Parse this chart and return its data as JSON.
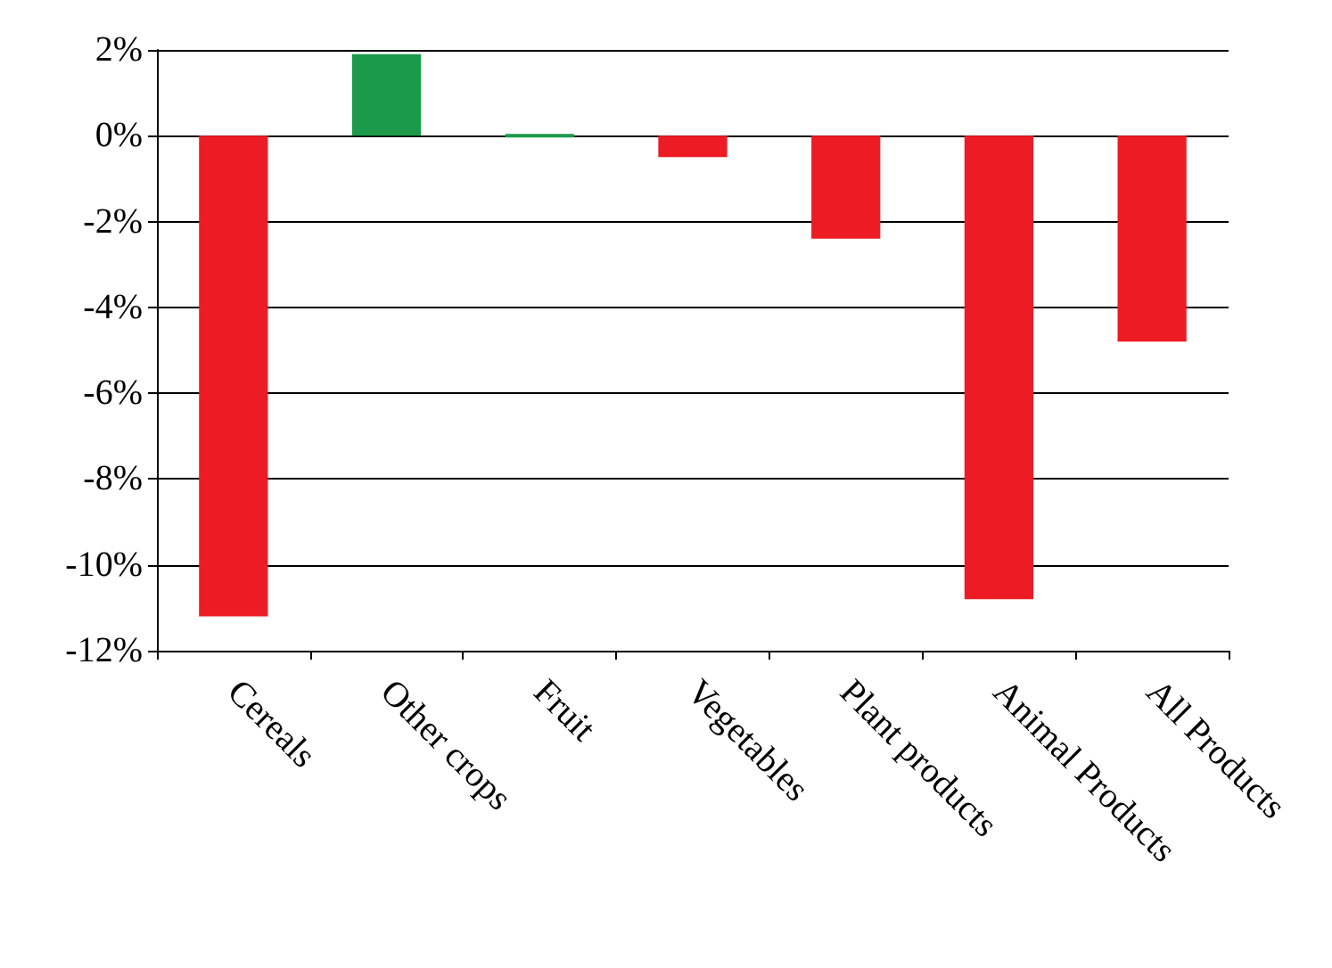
{
  "chart_data": {
    "type": "bar",
    "categories": [
      "Cereals",
      "Other crops",
      "Fruit",
      "Vegetables",
      "Plant products",
      "Animal Products",
      "All Products"
    ],
    "values": [
      -11.2,
      1.9,
      0,
      -0.5,
      -2.4,
      -10.8,
      -4.8
    ],
    "colors": [
      "#ed1c24",
      "#1a9a4a",
      "#1a9a4a",
      "#ed1c24",
      "#ed1c24",
      "#ed1c24",
      "#ed1c24"
    ],
    "ylim": [
      -12,
      2
    ],
    "yticks": [
      {
        "value": -12,
        "label": "-12%"
      },
      {
        "value": -10,
        "label": "-10%"
      },
      {
        "value": -8,
        "label": "-8%"
      },
      {
        "value": -6,
        "label": "-6%"
      },
      {
        "value": -4,
        "label": "-4%"
      },
      {
        "value": -2,
        "label": "-2%"
      },
      {
        "value": 0,
        "label": "0%"
      },
      {
        "value": 2,
        "label": "2%"
      }
    ],
    "grid": "y"
  }
}
